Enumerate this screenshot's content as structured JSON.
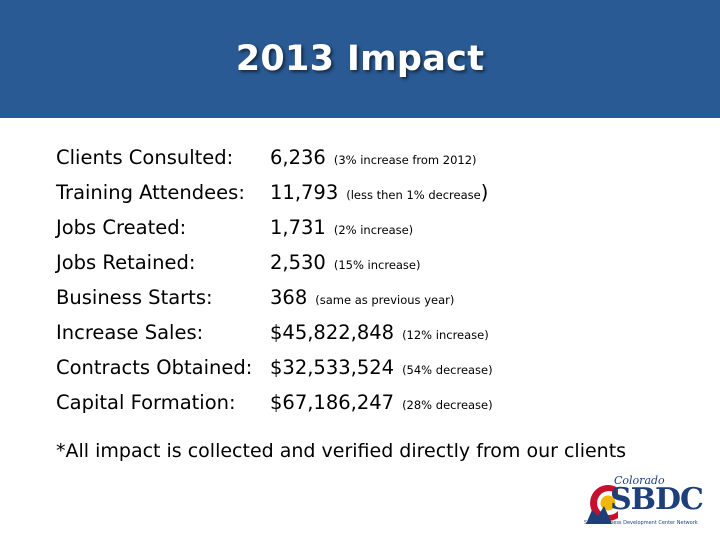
{
  "slide": {
    "title": "2013 Impact"
  },
  "stats": [
    {
      "label": "Clients Consulted:",
      "value": "6,236",
      "note": "(3% increase from 2012)"
    },
    {
      "label": "Training Attendees:",
      "value": "11,793",
      "note": "(less then 1% decrease",
      "note_close": ")"
    },
    {
      "label": "Jobs Created:",
      "value": "1,731",
      "note": "(2% increase)"
    },
    {
      "label": "Jobs Retained:",
      "value": "2,530",
      "note": "(15% increase)"
    },
    {
      "label": "Business Starts:",
      "value": "368",
      "note": "(same as previous year)"
    },
    {
      "label": "Increase Sales:",
      "value": "$45,822,848",
      "note": "(12% increase)"
    },
    {
      "label": "Contracts Obtained:",
      "value": "$32,533,524",
      "note": "(54% decrease)"
    },
    {
      "label": "Capital Formation:",
      "value": "$67,186,247",
      "note": "(28% decrease)"
    }
  ],
  "footnote": "*All impact is collected and verified directly from our clients",
  "logo": {
    "script": "Colorado",
    "wordmark": "SBDC",
    "tagline": "Small Business Development Center Network"
  },
  "colors": {
    "title_bar": "#2a5a93",
    "logo_blue": "#1e3f7a",
    "logo_red": "#c8102e",
    "logo_gold": "#f2b705"
  }
}
